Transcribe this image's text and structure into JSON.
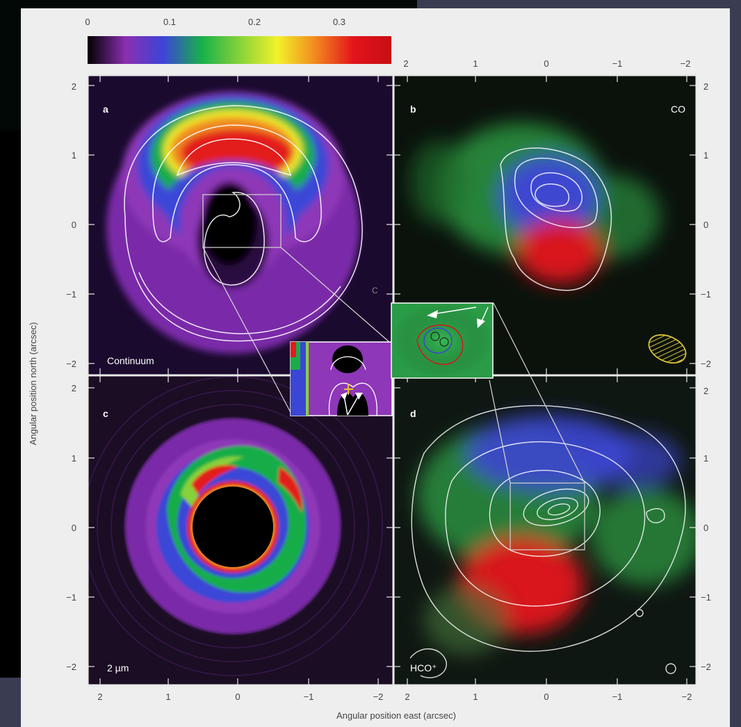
{
  "colorbar": {
    "ticks": [
      "0",
      "0.1",
      "0.2",
      "0.3"
    ],
    "colors": [
      "#000000",
      "#8a2fb0",
      "#3c45d8",
      "#17b04b",
      "#86d23a",
      "#f2f22a",
      "#f2891f",
      "#e3141b",
      "#c80d14"
    ]
  },
  "panels": {
    "a": {
      "letter": "a",
      "label": "Continuum"
    },
    "b": {
      "letter": "b",
      "label": "CO"
    },
    "c": {
      "letter": "c",
      "label": "2 µm"
    },
    "d": {
      "letter": "d",
      "label": "HCO⁺"
    },
    "a_overlay_letter": "C"
  },
  "axes": {
    "x_ticks": [
      "2",
      "1",
      "0",
      "−1",
      "−2"
    ],
    "y_ticks": [
      "2",
      "1",
      "0",
      "−1",
      "−2"
    ],
    "x_title": "Angular position east (arcsec)",
    "y_title": "Angular position north (arcsec)"
  }
}
